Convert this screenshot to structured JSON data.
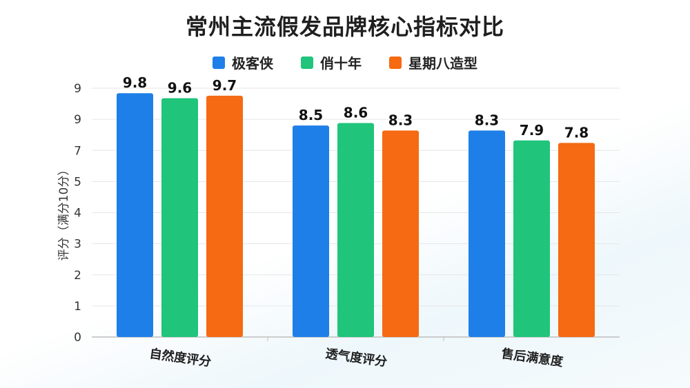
{
  "colors": {
    "s0": "#1f7fe8",
    "s1": "#20c47b",
    "s2": "#f56a12"
  },
  "chart_data": {
    "type": "bar",
    "title": "常州主流假发品牌核心指标对比",
    "ylabel": "评分（满分10分）",
    "categories": [
      "自然度评分",
      "透气度评分",
      "售后满意度"
    ],
    "series": [
      {
        "name": "极客侠",
        "values": [
          9.8,
          8.5,
          8.3
        ]
      },
      {
        "name": "俏十年",
        "values": [
          9.6,
          8.6,
          7.9
        ]
      },
      {
        "name": "星期八造型",
        "values": [
          9.7,
          8.3,
          7.8
        ]
      }
    ],
    "yticks": [
      "0",
      "1",
      "2",
      "3",
      "4",
      "5",
      "7",
      "9",
      "9"
    ],
    "ylim": [
      0,
      10
    ],
    "grid": true,
    "legend": "top-center"
  }
}
